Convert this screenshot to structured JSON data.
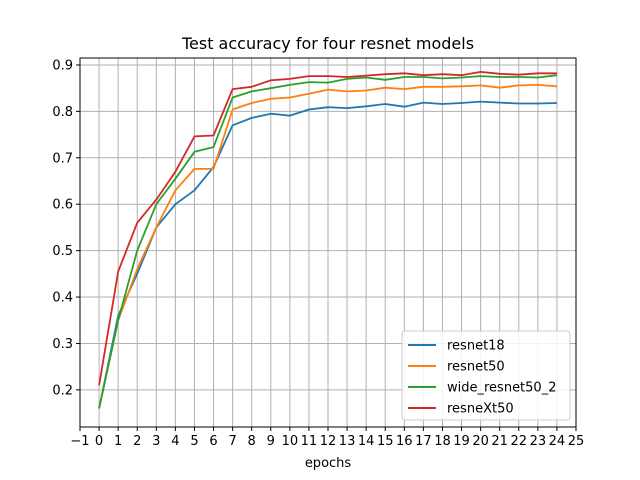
{
  "chart_data": {
    "type": "line",
    "title": "Test accuracy for four resnet models",
    "xlabel": "epochs",
    "ylabel": "",
    "xlim": [
      -1,
      25
    ],
    "ylim": [
      0.12,
      0.915
    ],
    "grid": true,
    "legend_position": "lower-right",
    "x": [
      0,
      1,
      2,
      3,
      4,
      5,
      6,
      7,
      8,
      9,
      10,
      11,
      12,
      13,
      14,
      15,
      16,
      17,
      18,
      19,
      20,
      21,
      22,
      23,
      24
    ],
    "x_ticks": [
      -1,
      0,
      1,
      2,
      3,
      4,
      5,
      6,
      7,
      8,
      9,
      10,
      11,
      12,
      13,
      14,
      15,
      16,
      17,
      18,
      19,
      20,
      21,
      22,
      23,
      24,
      25
    ],
    "x_tick_labels": [
      "−1",
      "0",
      "1",
      "2",
      "3",
      "4",
      "5",
      "6",
      "7",
      "8",
      "9",
      "10",
      "11",
      "12",
      "13",
      "14",
      "15",
      "16",
      "17",
      "18",
      "19",
      "20",
      "21",
      "22",
      "23",
      "24",
      "25"
    ],
    "y_ticks": [
      0.2,
      0.3,
      0.4,
      0.5,
      0.6,
      0.7,
      0.8,
      0.9
    ],
    "y_tick_labels": [
      "0.2",
      "0.3",
      "0.4",
      "0.5",
      "0.6",
      "0.7",
      "0.8",
      "0.9"
    ],
    "series": [
      {
        "name": "resnet18",
        "color": "#1f77b4",
        "values": [
          0.16,
          0.36,
          0.45,
          0.55,
          0.6,
          0.63,
          0.68,
          0.77,
          0.786,
          0.795,
          0.791,
          0.804,
          0.809,
          0.807,
          0.811,
          0.816,
          0.81,
          0.819,
          0.816,
          0.818,
          0.821,
          0.819,
          0.817,
          0.817,
          0.818
        ]
      },
      {
        "name": "resnet50",
        "color": "#ff7f0e",
        "values": [
          0.16,
          0.35,
          0.46,
          0.55,
          0.63,
          0.676,
          0.676,
          0.804,
          0.818,
          0.827,
          0.83,
          0.838,
          0.847,
          0.843,
          0.845,
          0.851,
          0.848,
          0.853,
          0.853,
          0.854,
          0.856,
          0.851,
          0.856,
          0.857,
          0.854
        ]
      },
      {
        "name": "wide_resnet50_2",
        "color": "#2ca02c",
        "values": [
          0.16,
          0.35,
          0.5,
          0.6,
          0.655,
          0.713,
          0.723,
          0.83,
          0.843,
          0.85,
          0.857,
          0.863,
          0.862,
          0.87,
          0.873,
          0.868,
          0.874,
          0.874,
          0.871,
          0.873,
          0.876,
          0.874,
          0.874,
          0.873,
          0.878
        ]
      },
      {
        "name": "resneXt50",
        "color": "#d62728",
        "values": [
          0.21,
          0.455,
          0.56,
          0.61,
          0.67,
          0.746,
          0.748,
          0.848,
          0.853,
          0.867,
          0.87,
          0.876,
          0.876,
          0.874,
          0.877,
          0.88,
          0.882,
          0.878,
          0.88,
          0.878,
          0.885,
          0.881,
          0.879,
          0.882,
          0.882
        ]
      }
    ]
  }
}
